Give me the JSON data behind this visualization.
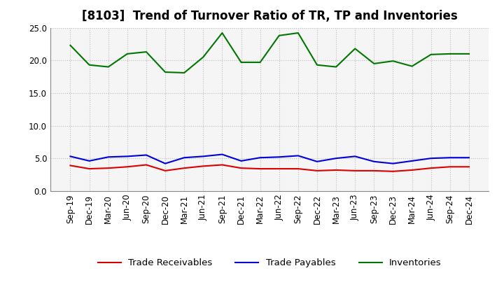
{
  "title": "[8103]  Trend of Turnover Ratio of TR, TP and Inventories",
  "x_labels": [
    "Sep-19",
    "Dec-19",
    "Mar-20",
    "Jun-20",
    "Sep-20",
    "Dec-20",
    "Mar-21",
    "Jun-21",
    "Sep-21",
    "Dec-21",
    "Mar-22",
    "Jun-22",
    "Sep-22",
    "Dec-22",
    "Mar-23",
    "Jun-23",
    "Sep-23",
    "Dec-23",
    "Mar-24",
    "Jun-24",
    "Sep-24",
    "Dec-24"
  ],
  "trade_receivables": [
    3.9,
    3.4,
    3.5,
    3.7,
    4.0,
    3.1,
    3.5,
    3.8,
    4.0,
    3.5,
    3.4,
    3.4,
    3.4,
    3.1,
    3.2,
    3.1,
    3.1,
    3.0,
    3.2,
    3.5,
    3.7,
    3.7
  ],
  "trade_payables": [
    5.3,
    4.6,
    5.2,
    5.3,
    5.5,
    4.2,
    5.1,
    5.3,
    5.6,
    4.6,
    5.1,
    5.2,
    5.4,
    4.5,
    5.0,
    5.3,
    4.5,
    4.2,
    4.6,
    5.0,
    5.1,
    5.1
  ],
  "inventories": [
    22.3,
    19.3,
    19.0,
    21.0,
    21.3,
    18.2,
    18.1,
    20.5,
    24.2,
    19.7,
    19.7,
    23.8,
    24.2,
    19.3,
    19.0,
    21.8,
    19.5,
    19.9,
    19.1,
    20.9,
    21.0,
    21.0
  ],
  "tr_color": "#dd0000",
  "tp_color": "#0000dd",
  "inv_color": "#007700",
  "ylim": [
    0.0,
    25.0
  ],
  "yticks": [
    0.0,
    5.0,
    10.0,
    15.0,
    20.0,
    25.0
  ],
  "bg_color": "#ffffff",
  "plot_bg_color": "#f5f5f5",
  "grid_color": "#bbbbbb",
  "legend_labels": [
    "Trade Receivables",
    "Trade Payables",
    "Inventories"
  ],
  "title_fontsize": 12,
  "tick_fontsize": 8.5,
  "legend_fontsize": 9.5
}
